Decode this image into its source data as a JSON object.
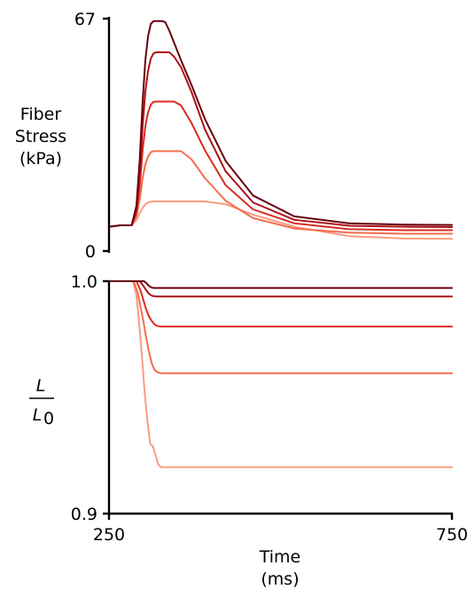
{
  "chart_data": [
    {
      "type": "line",
      "panel": "top",
      "ylabel_lines": [
        "Fiber",
        "Stress",
        "(kPa)"
      ],
      "xlim": [
        250,
        750
      ],
      "ylim": [
        0,
        67
      ],
      "yticks": [
        "0",
        "67"
      ],
      "xticks": [],
      "series": [
        {
          "color": "#fb9a80",
          "x": [
            250,
            266,
            283,
            290,
            295,
            299,
            303,
            307,
            311,
            315,
            319,
            323,
            324,
            327,
            332,
            338,
            345,
            355,
            370,
            390,
            420,
            460,
            520,
            600,
            680,
            750
          ],
          "y": [
            7,
            7.4,
            7.4,
            9,
            11,
            12.5,
            13.5,
            14,
            14.2,
            14.3,
            14.3,
            14.3,
            14.3,
            14.3,
            14.3,
            14.3,
            14.3,
            14.3,
            14.3,
            14.3,
            13.5,
            10.5,
            7,
            4.3,
            3.6,
            3.5
          ]
        },
        {
          "color": "#f46d4f",
          "x": [
            250,
            266,
            283,
            290,
            295,
            299,
            303,
            307,
            311,
            315,
            319,
            323,
            327,
            332,
            338,
            345,
            355,
            370,
            390,
            420,
            460,
            520,
            600,
            680,
            750
          ],
          "y": [
            7,
            7.4,
            7.4,
            10,
            15,
            21,
            25,
            27.3,
            28.5,
            28.8,
            28.8,
            28.8,
            28.8,
            28.8,
            28.8,
            28.8,
            28.8,
            26.5,
            21,
            14.5,
            9.5,
            6.5,
            5.3,
            5,
            5
          ]
        },
        {
          "color": "#db2b21",
          "x": [
            250,
            266,
            283,
            290,
            295,
            299,
            303,
            307,
            311,
            315,
            319,
            323,
            327,
            332,
            338,
            345,
            355,
            370,
            390,
            420,
            460,
            520,
            600,
            680,
            750
          ],
          "y": [
            7,
            7.4,
            7.4,
            11,
            19,
            29,
            36,
            40,
            42.2,
            43,
            43.1,
            43.1,
            43.1,
            43.1,
            43.1,
            43.1,
            42,
            37,
            29,
            19,
            12,
            8,
            6.3,
            6,
            6
          ]
        },
        {
          "color": "#ad1119",
          "x": [
            250,
            266,
            283,
            290,
            295,
            299,
            303,
            307,
            311,
            315,
            319,
            323,
            327,
            332,
            338,
            345,
            355,
            370,
            390,
            420,
            460,
            520,
            600,
            680,
            750
          ],
          "y": [
            7,
            7.4,
            7.4,
            12,
            23,
            36,
            46,
            52,
            55.5,
            57,
            57.3,
            57.3,
            57.3,
            57.3,
            57.3,
            56,
            53,
            46,
            35,
            23,
            14,
            9,
            7.3,
            7,
            6.9
          ]
        },
        {
          "color": "#67000d",
          "x": [
            250,
            266,
            283,
            290,
            295,
            299,
            303,
            307,
            311,
            315,
            319,
            323,
            327,
            332,
            338,
            345,
            355,
            370,
            390,
            420,
            460,
            520,
            600,
            680,
            750
          ],
          "y": [
            7,
            7.4,
            7.4,
            13,
            27,
            43,
            55,
            62,
            65.5,
            66.3,
            66.3,
            66.3,
            66.3,
            66,
            63.5,
            60,
            55,
            48,
            38,
            26,
            16,
            10,
            8,
            7.6,
            7.5
          ]
        }
      ]
    },
    {
      "type": "line",
      "panel": "bottom",
      "ylabel_num": "L",
      "ylabel_den": "L",
      "ylabel_den_sub": "0",
      "xlim": [
        250,
        750
      ],
      "ylim": [
        0.9,
        1.0
      ],
      "yticks": [
        "0.9",
        "1.0"
      ],
      "xticks": [
        "250",
        "750"
      ],
      "xlabel_lines": [
        "Time",
        "(ms)"
      ],
      "series": [
        {
          "color": "#fb9a80",
          "x": [
            250,
            260,
            285,
            290,
            293,
            296,
            299,
            302,
            306,
            310,
            314,
            318,
            322,
            326,
            330,
            750
          ],
          "y": [
            1.0,
            1.0,
            1.0,
            0.994,
            0.985,
            0.975,
            0.964,
            0.952,
            0.94,
            0.93,
            0.929,
            0.925,
            0.921,
            0.92,
            0.92,
            0.92
          ]
        },
        {
          "color": "#f46d4f",
          "x": [
            250,
            260,
            286,
            292,
            296,
            300,
            304,
            308,
            312,
            316,
            320,
            324,
            328,
            332,
            750
          ],
          "y": [
            1.0,
            1.0,
            1.0,
            0.995,
            0.989,
            0.983,
            0.976,
            0.97,
            0.965,
            0.962,
            0.961,
            0.9605,
            0.9604,
            0.9604,
            0.9604
          ]
        },
        {
          "color": "#db2b21",
          "x": [
            250,
            260,
            290,
            296,
            300,
            304,
            308,
            312,
            316,
            320,
            324,
            328,
            332,
            750
          ],
          "y": [
            1.0,
            1.0,
            1.0,
            0.996,
            0.992,
            0.988,
            0.985,
            0.983,
            0.9815,
            0.9808,
            0.9805,
            0.9805,
            0.9805,
            0.9805
          ]
        },
        {
          "color": "#ad1119",
          "x": [
            250,
            260,
            295,
            300,
            304,
            308,
            312,
            316,
            320,
            324,
            328,
            750
          ],
          "y": [
            1.0,
            1.0,
            1.0,
            0.998,
            0.9962,
            0.9947,
            0.9938,
            0.9935,
            0.9934,
            0.9934,
            0.9934,
            0.9934
          ]
        },
        {
          "color": "#67000d",
          "x": [
            250,
            260,
            301,
            304,
            307,
            310,
            313,
            316,
            320,
            750
          ],
          "y": [
            1.0,
            1.0,
            1.0,
            0.9993,
            0.9983,
            0.9976,
            0.9972,
            0.9971,
            0.9971,
            0.9971
          ]
        }
      ]
    }
  ]
}
